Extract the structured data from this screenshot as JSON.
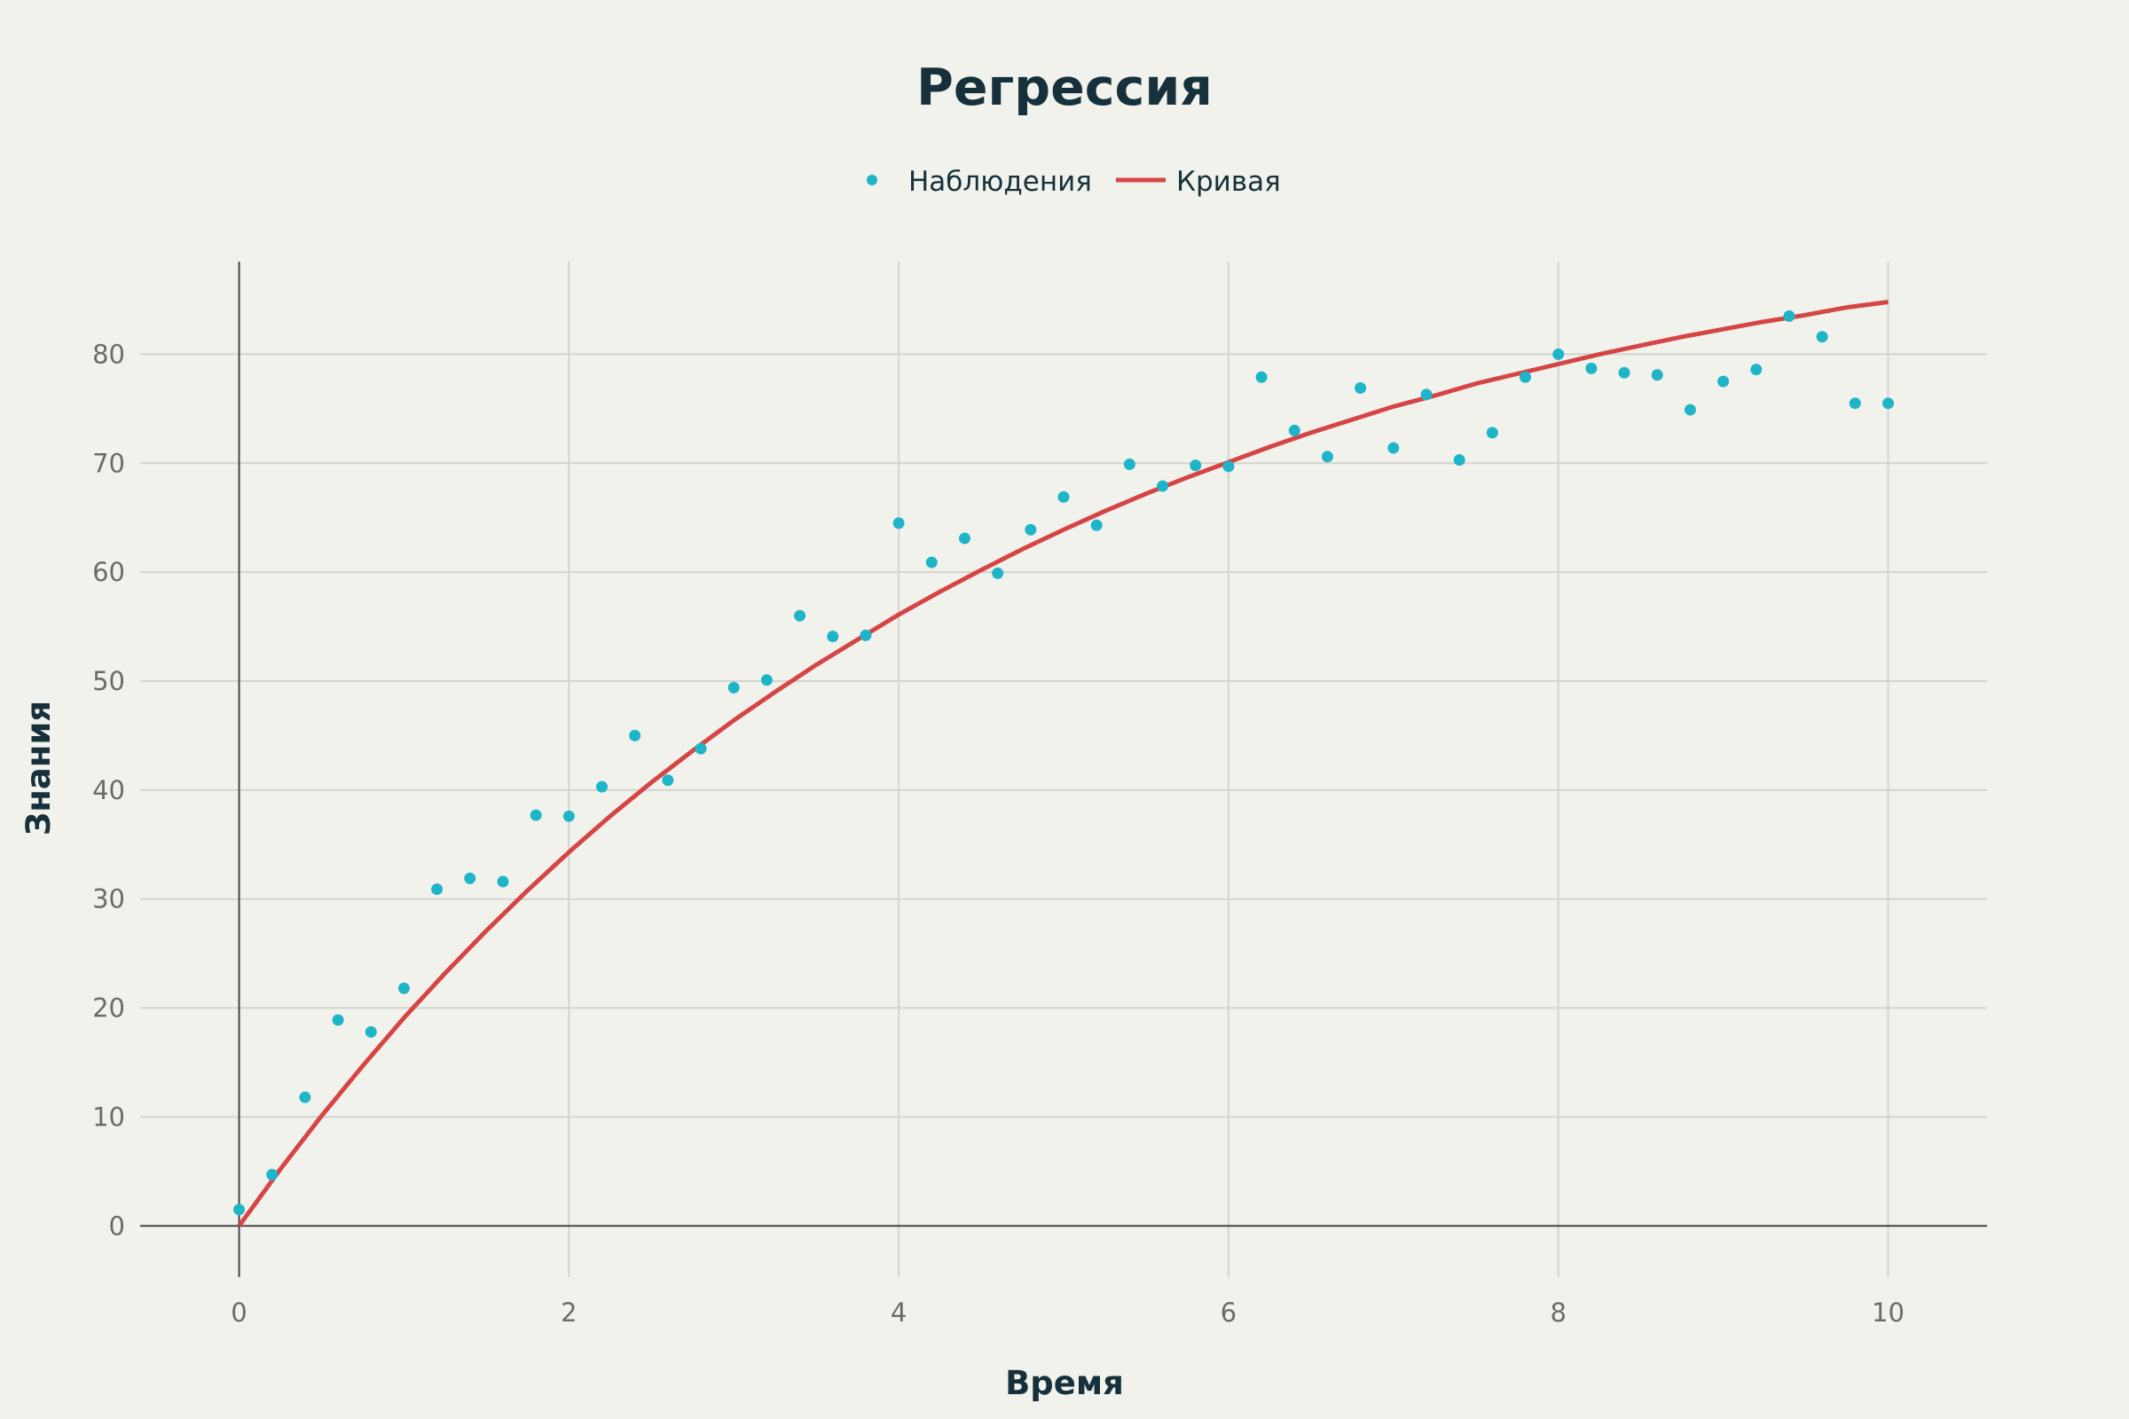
{
  "chart_data": {
    "type": "scatter",
    "title": "Регрессия",
    "xlabel": "Время",
    "ylabel": "Знания",
    "xlim": [
      -0.6,
      10.6
    ],
    "ylim": [
      -4.7,
      88.5
    ],
    "x_ticks": [
      0,
      2,
      4,
      6,
      8,
      10
    ],
    "y_ticks": [
      0,
      10,
      20,
      30,
      40,
      50,
      60,
      70,
      80
    ],
    "grid": true,
    "legend_position": "top-center",
    "colors": {
      "observations": "#1fb5c9",
      "curve": "#d64545",
      "background": "#f2f2ed",
      "grid": "#d3d3cf",
      "axis": "#444444"
    },
    "series": [
      {
        "name": "Наблюдения",
        "kind": "scatter",
        "x": [
          0.0,
          0.2,
          0.4,
          0.6,
          0.8,
          1.0,
          1.2,
          1.4,
          1.6,
          1.8,
          2.0,
          2.2,
          2.4,
          2.6,
          2.8,
          3.0,
          3.2,
          3.4,
          3.6,
          3.8,
          4.0,
          4.2,
          4.4,
          4.6,
          4.8,
          5.0,
          5.2,
          5.4,
          5.6,
          5.8,
          6.0,
          6.2,
          6.4,
          6.6,
          6.8,
          7.0,
          7.2,
          7.4,
          7.6,
          7.8,
          8.0,
          8.2,
          8.4,
          8.6,
          8.8,
          9.0,
          9.2,
          9.4,
          9.6,
          9.8,
          10.0
        ],
        "y": [
          1.5,
          4.7,
          11.8,
          18.9,
          17.8,
          21.8,
          30.9,
          31.9,
          31.6,
          37.7,
          37.6,
          40.3,
          45.0,
          40.9,
          43.8,
          49.4,
          50.1,
          56.0,
          54.1,
          54.2,
          64.5,
          60.9,
          63.1,
          59.9,
          63.9,
          66.9,
          64.3,
          69.9,
          67.9,
          69.8,
          69.7,
          77.9,
          73.0,
          70.6,
          76.9,
          71.4,
          76.3,
          70.3,
          72.8,
          77.9,
          80.0,
          78.7,
          78.3,
          78.1,
          74.9,
          77.5,
          78.6,
          83.5,
          81.6,
          75.5,
          75.5
        ]
      },
      {
        "name": "Кривая",
        "kind": "line",
        "x": [
          0.0,
          0.25,
          0.5,
          0.75,
          1.0,
          1.25,
          1.5,
          1.75,
          2.0,
          2.25,
          2.5,
          2.75,
          3.0,
          3.25,
          3.5,
          3.75,
          4.0,
          4.25,
          4.5,
          4.75,
          5.0,
          5.25,
          5.5,
          5.75,
          6.0,
          6.25,
          6.5,
          6.75,
          7.0,
          7.25,
          7.5,
          7.75,
          8.0,
          8.25,
          8.5,
          8.75,
          9.0,
          9.25,
          9.5,
          9.75,
          10.0
        ],
        "y": [
          0.0,
          5.2,
          10.1,
          14.7,
          19.1,
          23.2,
          27.1,
          30.8,
          34.3,
          37.6,
          40.7,
          43.6,
          46.4,
          49.0,
          51.5,
          53.8,
          56.1,
          58.2,
          60.2,
          62.1,
          63.9,
          65.6,
          67.2,
          68.7,
          70.1,
          71.5,
          72.8,
          74.0,
          75.2,
          76.2,
          77.3,
          78.2,
          79.1,
          80.0,
          80.8,
          81.6,
          82.3,
          83.0,
          83.6,
          84.3,
          84.8
        ]
      }
    ]
  }
}
